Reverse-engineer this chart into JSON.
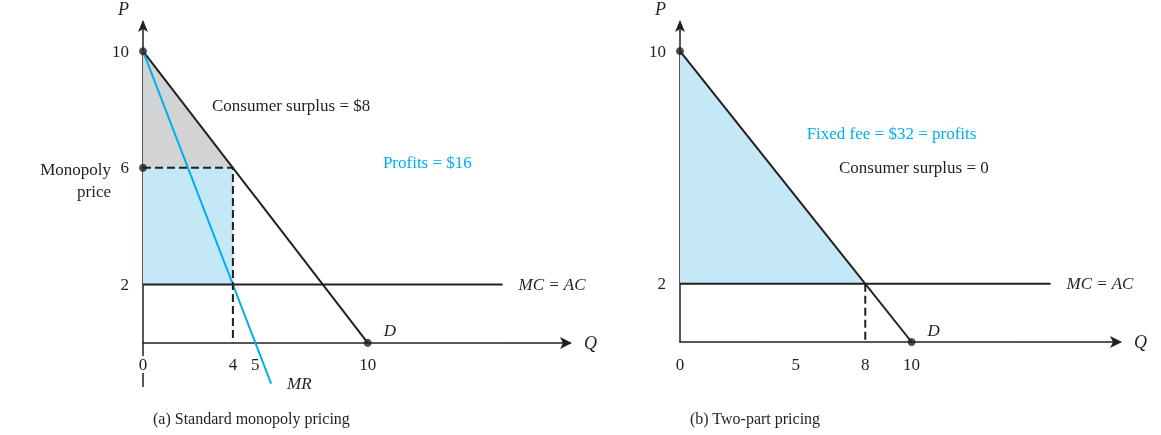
{
  "chart_data": [
    {
      "type": "line",
      "title": "(a) Standard monopoly pricing",
      "xlabel": "Q",
      "ylabel": "P",
      "xlim": [
        0,
        19
      ],
      "ylim": [
        -1.5,
        11
      ],
      "xticks": [
        0,
        4,
        5,
        10
      ],
      "yticks": [
        2,
        6,
        10
      ],
      "series": [
        {
          "type": "area",
          "name": "Consumer surplus = $8",
          "color": "#d1d3d4",
          "x": [
            0,
            4,
            0
          ],
          "values": [
            10,
            6,
            6
          ]
        },
        {
          "type": "area",
          "name": "Profits = $16",
          "color": "#c5e8f7",
          "x": [
            0,
            4,
            4,
            0
          ],
          "values": [
            6,
            6,
            2,
            2
          ]
        },
        {
          "name": "MC = AC",
          "color": "#231f20",
          "x": [
            0,
            16
          ],
          "values": [
            2,
            2
          ],
          "marker": "none"
        },
        {
          "name": "D",
          "color": "#231f20",
          "x": [
            0,
            10
          ],
          "values": [
            10,
            0
          ],
          "marker": "none"
        },
        {
          "name": "MR",
          "color": "#00aeef",
          "x": [
            0,
            5.7
          ],
          "values": [
            10,
            -1.4
          ],
          "marker": "none"
        },
        {
          "color": "#231f20",
          "x": [
            0,
            4,
            4
          ],
          "values": [
            6,
            6,
            0
          ],
          "marker": "none",
          "line_style": "dashed"
        },
        {
          "type": "scatter",
          "color": "#231f20",
          "x": [
            0,
            0,
            10
          ],
          "values": [
            10,
            6,
            0
          ],
          "marker": "circle"
        }
      ],
      "annotations": [
        "Monopoly price"
      ]
    },
    {
      "type": "line",
      "title": "(b) Two-part pricing",
      "xlabel": "Q",
      "ylabel": "P",
      "xlim": [
        0,
        19
      ],
      "ylim": [
        0,
        11
      ],
      "xticks": [
        0,
        5,
        8,
        10
      ],
      "yticks": [
        2,
        10
      ],
      "series": [
        {
          "type": "area",
          "name": "Fixed fee = $32 = profits",
          "color": "#c5e8f7",
          "x": [
            0,
            8,
            0
          ],
          "values": [
            10,
            2,
            2
          ]
        },
        {
          "name": "MC = AC",
          "color": "#231f20",
          "x": [
            0,
            16
          ],
          "values": [
            2,
            2
          ],
          "marker": "none"
        },
        {
          "name": "D",
          "color": "#231f20",
          "x": [
            0,
            10
          ],
          "values": [
            10,
            0
          ],
          "marker": "none"
        },
        {
          "color": "#231f20",
          "x": [
            8,
            8
          ],
          "values": [
            2,
            0
          ],
          "marker": "none",
          "line_style": "dashed"
        },
        {
          "type": "scatter",
          "color": "#231f20",
          "x": [
            0,
            10
          ],
          "values": [
            10,
            0
          ],
          "marker": "circle"
        }
      ],
      "annotations": [
        "Consumer surplus = 0"
      ]
    }
  ]
}
